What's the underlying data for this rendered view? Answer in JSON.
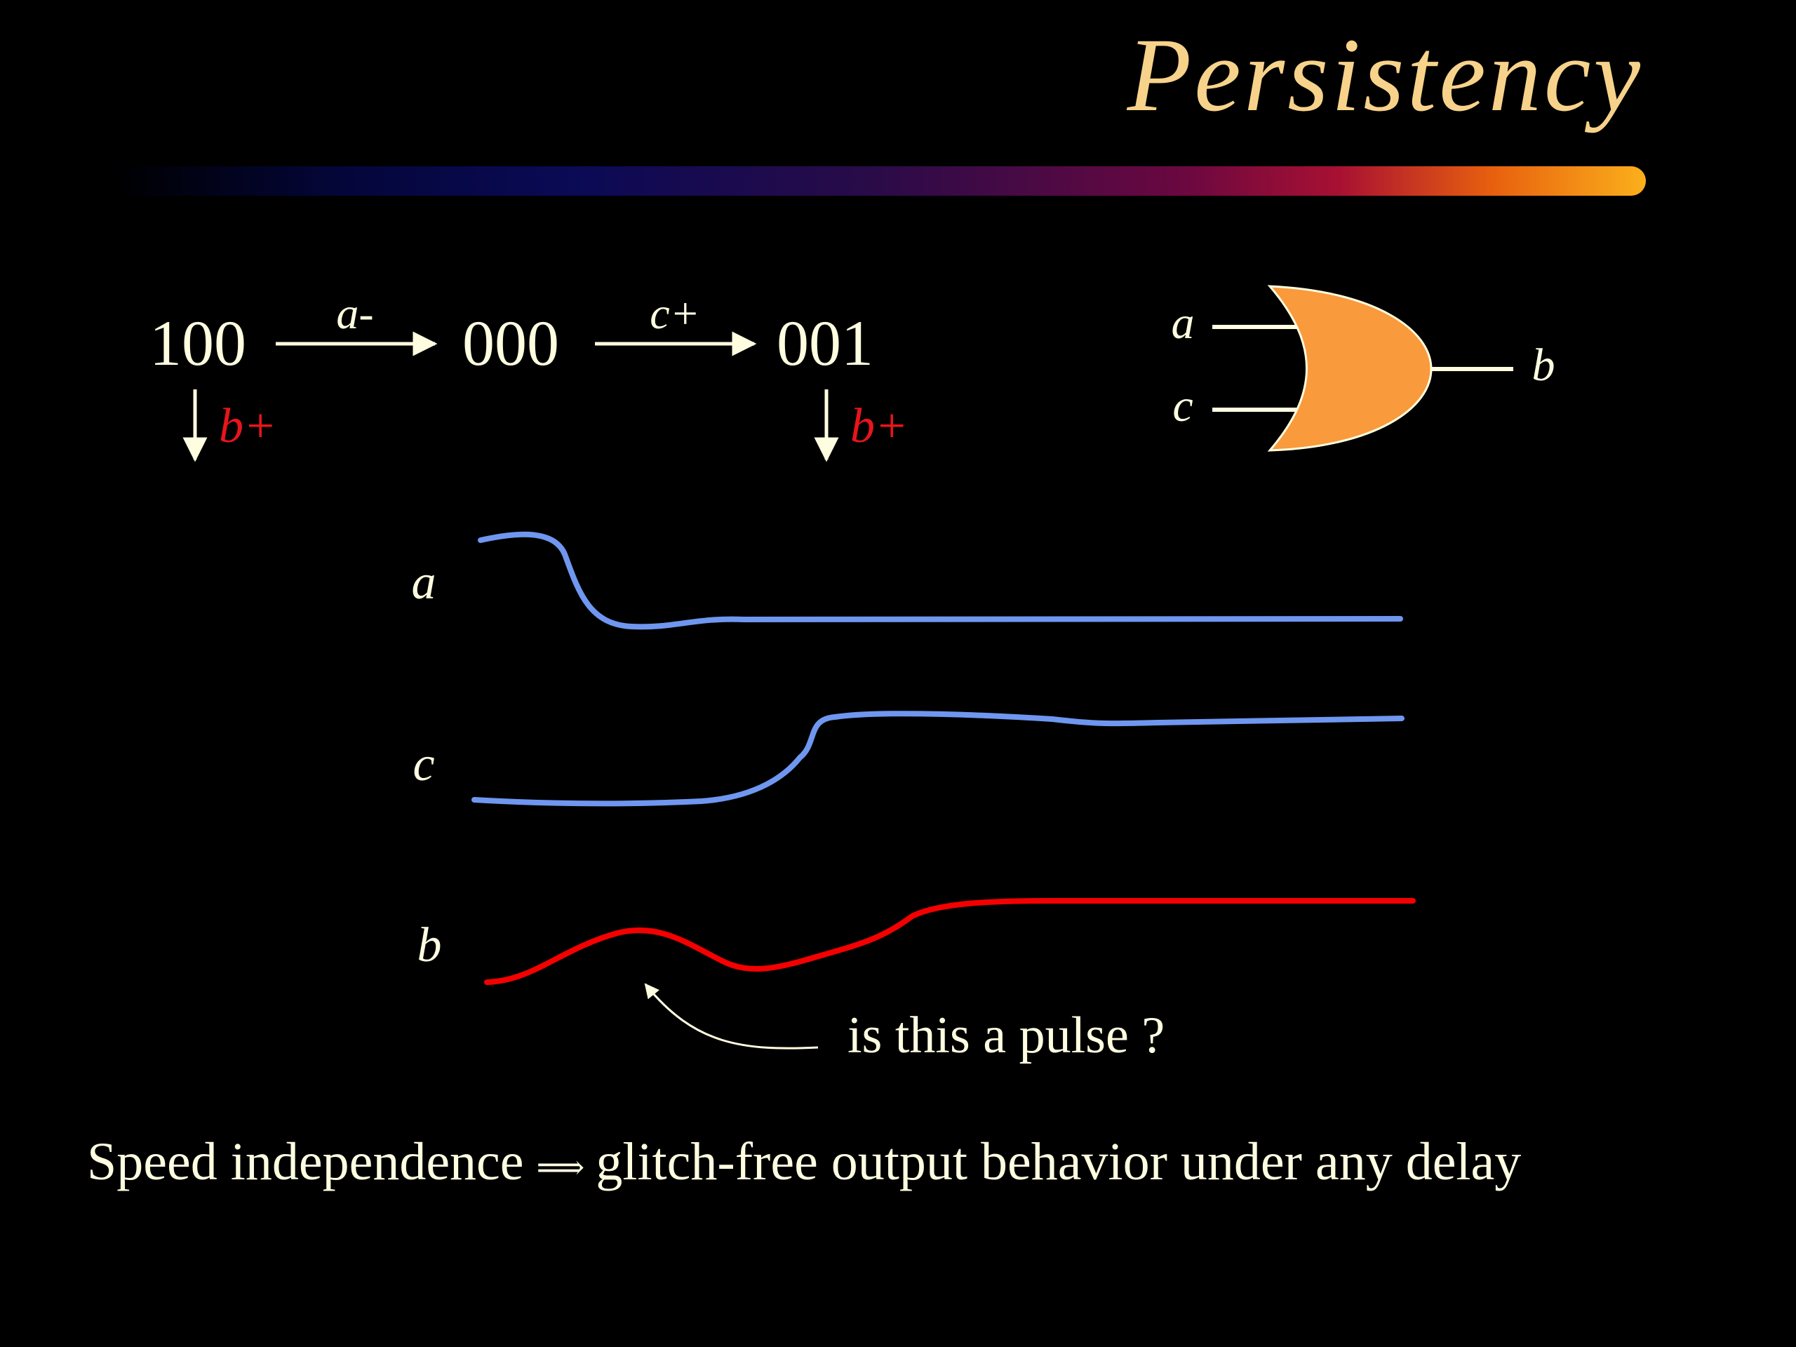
{
  "slide": {
    "title": "Persistency",
    "footer": {
      "left": "Speed independence",
      "connector_icon": "implies-arrow-icon",
      "right": "glitch-free output behavior under any delay"
    }
  },
  "state_graph": {
    "states": [
      "100",
      "000",
      "001"
    ],
    "transitions": [
      {
        "from": "100",
        "to": "000",
        "label": "a-"
      },
      {
        "from": "000",
        "to": "001",
        "label": "c+"
      }
    ],
    "enabled": [
      {
        "state": "100",
        "label": "b+"
      },
      {
        "state": "001",
        "label": "b+"
      }
    ]
  },
  "gate": {
    "type": "OR",
    "inputs": [
      "a",
      "c"
    ],
    "output": "b",
    "fill_color": "#f99a3c"
  },
  "waveforms": {
    "signals": [
      {
        "name": "a",
        "color": "#6f97f0"
      },
      {
        "name": "c",
        "color": "#6f97f0"
      },
      {
        "name": "b",
        "color": "#f40000"
      }
    ],
    "annotation": "is this a pulse ?"
  },
  "colors": {
    "background": "#000000",
    "title": "#f7d28a",
    "text": "#fffde0",
    "enabled_label": "#e8151a"
  }
}
